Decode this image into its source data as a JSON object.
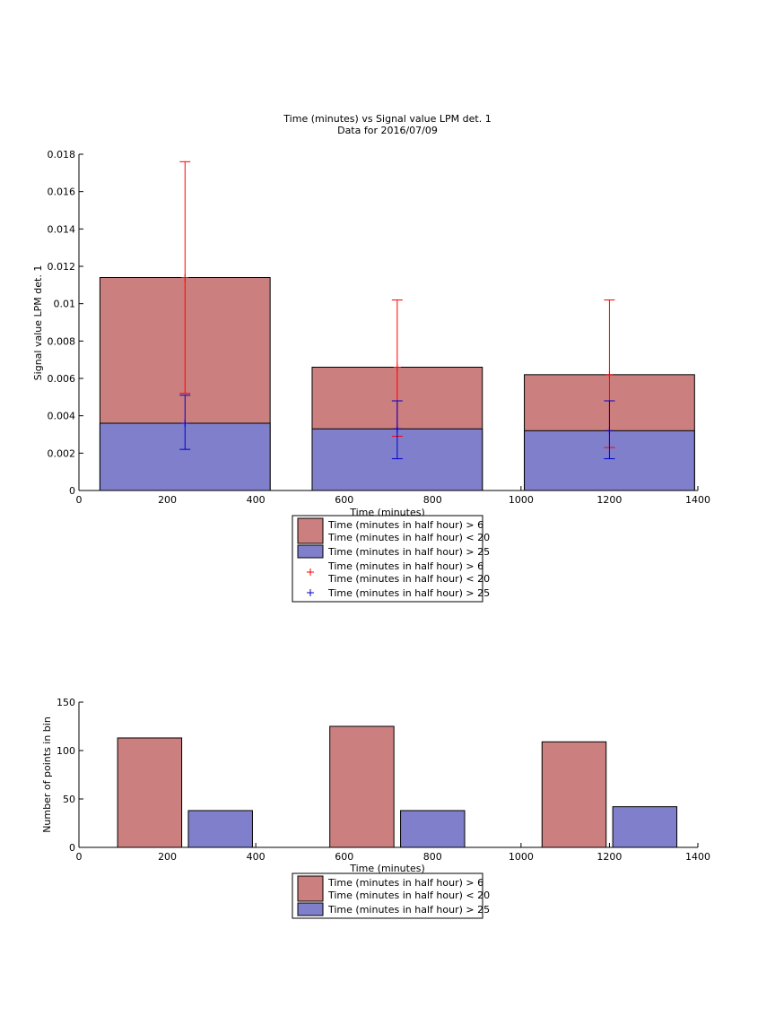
{
  "chart_data": [
    {
      "type": "bar",
      "title": "Time (minutes) vs Signal value LPM det. 1",
      "subtitle": "Data for 2016/07/09",
      "xlabel": "Time (minutes)",
      "ylabel": "Signal value LPM det. 1",
      "xlim": [
        0,
        1400
      ],
      "ylim": [
        0,
        0.018
      ],
      "xticks": [
        "0",
        "200",
        "400",
        "600",
        "800",
        "1000",
        "1200",
        "1400"
      ],
      "yticks": [
        "0",
        "0.002",
        "0.004",
        "0.006",
        "0.008",
        "0.01",
        "0.012",
        "0.014",
        "0.016",
        "0.018"
      ],
      "bar_width": 385,
      "x": [
        240,
        720,
        1200
      ],
      "series": [
        {
          "name": "Time (minutes in half hour) > 6\nTime (minutes in half hour) < 20",
          "color": "#cc7f7f",
          "values": [
            0.0114,
            0.0066,
            0.0062
          ]
        },
        {
          "name": "Time (minutes in half hour) > 25",
          "color": "#7f7fcc",
          "values": [
            0.0036,
            0.0033,
            0.0032
          ]
        }
      ],
      "errorbars": [
        {
          "name": "Time (minutes in half hour) > 6\nTime (minutes in half hour) < 20",
          "color": "#ff0000",
          "marker": "+",
          "x": [
            240,
            720,
            1200
          ],
          "center": [
            0.0114,
            0.0066,
            0.0062
          ],
          "lower": [
            0.0052,
            0.0029,
            0.0023
          ],
          "upper": [
            0.0176,
            0.0102,
            0.0102
          ]
        },
        {
          "name": "Time (minutes in half hour) > 25",
          "color": "#0000cc",
          "marker": "+",
          "x": [
            240,
            720,
            1200
          ],
          "center": [
            0.0036,
            0.0033,
            0.0032
          ],
          "lower": [
            0.0022,
            0.0017,
            0.0017
          ],
          "upper": [
            0.0051,
            0.0048,
            0.0048
          ]
        }
      ],
      "legend": "bottom-center",
      "grid": false
    },
    {
      "type": "bar",
      "title": "",
      "xlabel": "Time (minutes)",
      "ylabel": "Number of points in bin",
      "xlim": [
        0,
        1400
      ],
      "ylim": [
        0,
        150
      ],
      "xticks": [
        "0",
        "200",
        "400",
        "600",
        "800",
        "1000",
        "1200",
        "1400"
      ],
      "yticks": [
        "0",
        "50",
        "100",
        "150"
      ],
      "bar_width": 145,
      "series": [
        {
          "name": "Time (minutes in half hour) > 6\nTime (minutes in half hour) < 20",
          "color": "#cc7f7f",
          "x": [
            160,
            640,
            1120
          ],
          "values": [
            113,
            125,
            109
          ]
        },
        {
          "name": "Time (minutes in half hour) > 25",
          "color": "#7f7fcc",
          "x": [
            320,
            800,
            1280
          ],
          "values": [
            38,
            38,
            42
          ]
        }
      ],
      "legend": "bottom-center",
      "grid": false
    }
  ]
}
